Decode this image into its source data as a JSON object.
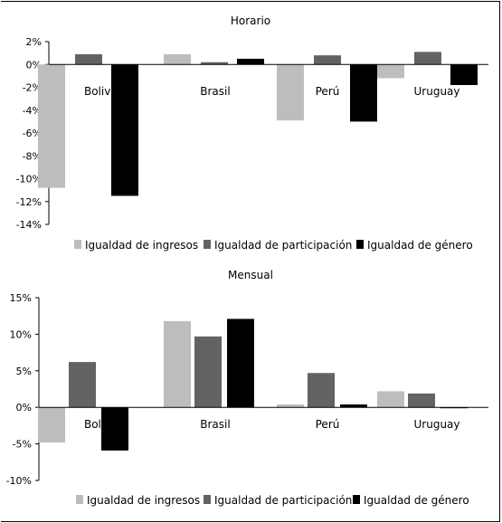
{
  "chart_data": [
    {
      "type": "bar",
      "title": "Horario",
      "xlabel": "",
      "ylabel": "",
      "categories": [
        "Bolivia",
        "Brasil",
        "Perú",
        "Uruguay"
      ],
      "series": [
        {
          "name": "Igualdad de ingresos",
          "color": "#bdbdbd",
          "values": [
            -10.8,
            0.9,
            -4.9,
            -1.2
          ]
        },
        {
          "name": "Igualdad de participación",
          "color": "#636363",
          "values": [
            0.9,
            0.2,
            0.8,
            1.1
          ]
        },
        {
          "name": "Igualdad de género",
          "color": "#000000",
          "values": [
            -11.5,
            0.5,
            -5.0,
            -1.8
          ]
        }
      ],
      "ylim": [
        -14,
        2
      ],
      "yticks": [
        2,
        0,
        -2,
        -4,
        -6,
        -8,
        -10,
        -12,
        -14
      ],
      "ytick_labels": [
        "2%",
        "0%",
        "-2%",
        "-4%",
        "-6%",
        "-8%",
        "-10%",
        "-12%",
        "-14%"
      ],
      "grid": false,
      "legend_position": "bottom"
    },
    {
      "type": "bar",
      "title": "Mensual",
      "xlabel": "",
      "ylabel": "",
      "categories": [
        "Bolivia",
        "Brasil",
        "Perú",
        "Uruguay"
      ],
      "series": [
        {
          "name": "Igualdad de ingresos",
          "color": "#bdbdbd",
          "values": [
            -4.8,
            11.8,
            0.4,
            2.2
          ]
        },
        {
          "name": "Igualdad de participación",
          "color": "#636363",
          "values": [
            6.2,
            9.7,
            4.7,
            1.9
          ]
        },
        {
          "name": "Igualdad de género",
          "color": "#000000",
          "values": [
            -5.9,
            12.1,
            0.4,
            -0.1
          ]
        }
      ],
      "ylim": [
        -10,
        15
      ],
      "yticks": [
        15,
        10,
        5,
        0,
        -5,
        -10
      ],
      "ytick_labels": [
        "15%",
        "10%",
        "5%",
        "0%",
        "-5%",
        "-10%"
      ],
      "grid": false,
      "legend_position": "bottom"
    }
  ]
}
